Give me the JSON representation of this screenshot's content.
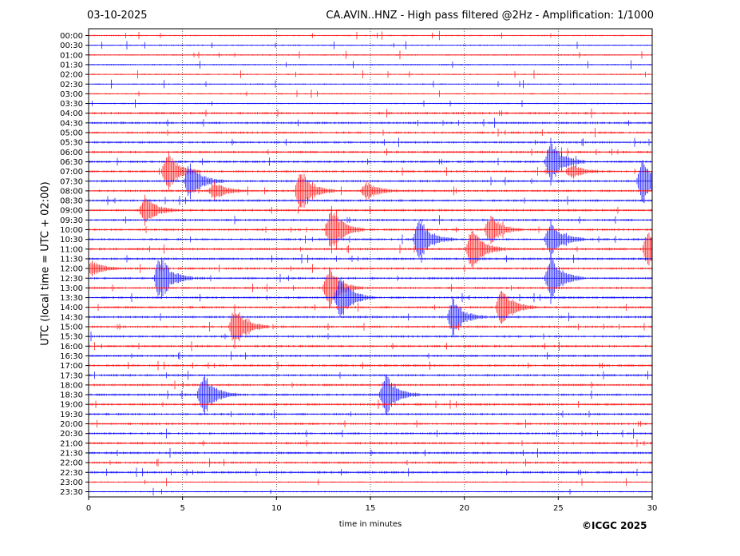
{
  "header": {
    "date": "03-10-2025",
    "title": "CA.AVIN..HNZ - High pass filtered @2Hz - Amplification: 1/1000"
  },
  "footer": {
    "copyright": "©ICGC 2025"
  },
  "colors": {
    "odd": "#ff0000",
    "even": "#0000ff"
  },
  "chart_data": {
    "type": "line",
    "xlabel": "time in minutes",
    "ylabel": "UTC (local time = UTC + 02:00)",
    "xlim": [
      0,
      30
    ],
    "xticks": [
      0,
      5,
      10,
      15,
      20,
      25,
      30
    ],
    "grid": "vertical dotted lines at x ticks",
    "rows": [
      "00:00",
      "00:30",
      "01:00",
      "01:30",
      "02:00",
      "02:30",
      "03:00",
      "03:30",
      "04:00",
      "04:30",
      "05:00",
      "05:30",
      "06:00",
      "06:30",
      "07:00",
      "07:30",
      "08:00",
      "08:30",
      "09:00",
      "09:30",
      "10:00",
      "10:30",
      "11:00",
      "11:30",
      "12:00",
      "12:30",
      "13:00",
      "13:30",
      "14:00",
      "14:30",
      "15:00",
      "15:30",
      "16:00",
      "16:30",
      "17:00",
      "17:30",
      "18:00",
      "18:30",
      "19:00",
      "19:30",
      "20:00",
      "20:30",
      "21:00",
      "21:30",
      "22:00",
      "22:30",
      "23:00",
      "23:30"
    ],
    "trace_colors": "alternating red / blue per row",
    "events": [
      {
        "row": "06:30",
        "minute": 24.6,
        "amplitude": 2.5
      },
      {
        "row": "07:00",
        "minute": 4.2,
        "amplitude": 2.2
      },
      {
        "row": "07:00",
        "minute": 25.7,
        "amplitude": 0.8
      },
      {
        "row": "07:30",
        "minute": 5.4,
        "amplitude": 2.2
      },
      {
        "row": "07:30",
        "minute": 29.5,
        "amplitude": 2.4
      },
      {
        "row": "08:00",
        "minute": 6.7,
        "amplitude": 1.0
      },
      {
        "row": "08:00",
        "minute": 14.8,
        "amplitude": 1.0
      },
      {
        "row": "08:00",
        "minute": 11.3,
        "amplitude": 2.5
      },
      {
        "row": "09:00",
        "minute": 3.0,
        "amplitude": 1.7
      },
      {
        "row": "10:00",
        "minute": 12.9,
        "amplitude": 2.6
      },
      {
        "row": "10:00",
        "minute": 21.4,
        "amplitude": 1.6
      },
      {
        "row": "10:30",
        "minute": 17.6,
        "amplitude": 2.4
      },
      {
        "row": "10:30",
        "minute": 24.6,
        "amplitude": 2.2
      },
      {
        "row": "11:00",
        "minute": 20.4,
        "amplitude": 2.6
      },
      {
        "row": "11:00",
        "minute": 29.8,
        "amplitude": 2.2
      },
      {
        "row": "12:00",
        "minute": 0.2,
        "amplitude": 0.8
      },
      {
        "row": "12:30",
        "minute": 3.8,
        "amplitude": 2.6
      },
      {
        "row": "12:30",
        "minute": 24.6,
        "amplitude": 2.6
      },
      {
        "row": "13:00",
        "minute": 12.8,
        "amplitude": 2.3
      },
      {
        "row": "13:30",
        "minute": 13.4,
        "amplitude": 2.6
      },
      {
        "row": "14:00",
        "minute": 22.0,
        "amplitude": 2.2
      },
      {
        "row": "14:30",
        "minute": 19.4,
        "amplitude": 2.0
      },
      {
        "row": "15:00",
        "minute": 7.8,
        "amplitude": 2.5
      },
      {
        "row": "18:30",
        "minute": 6.1,
        "amplitude": 2.6
      },
      {
        "row": "18:30",
        "minute": 15.8,
        "amplitude": 2.3
      }
    ]
  }
}
